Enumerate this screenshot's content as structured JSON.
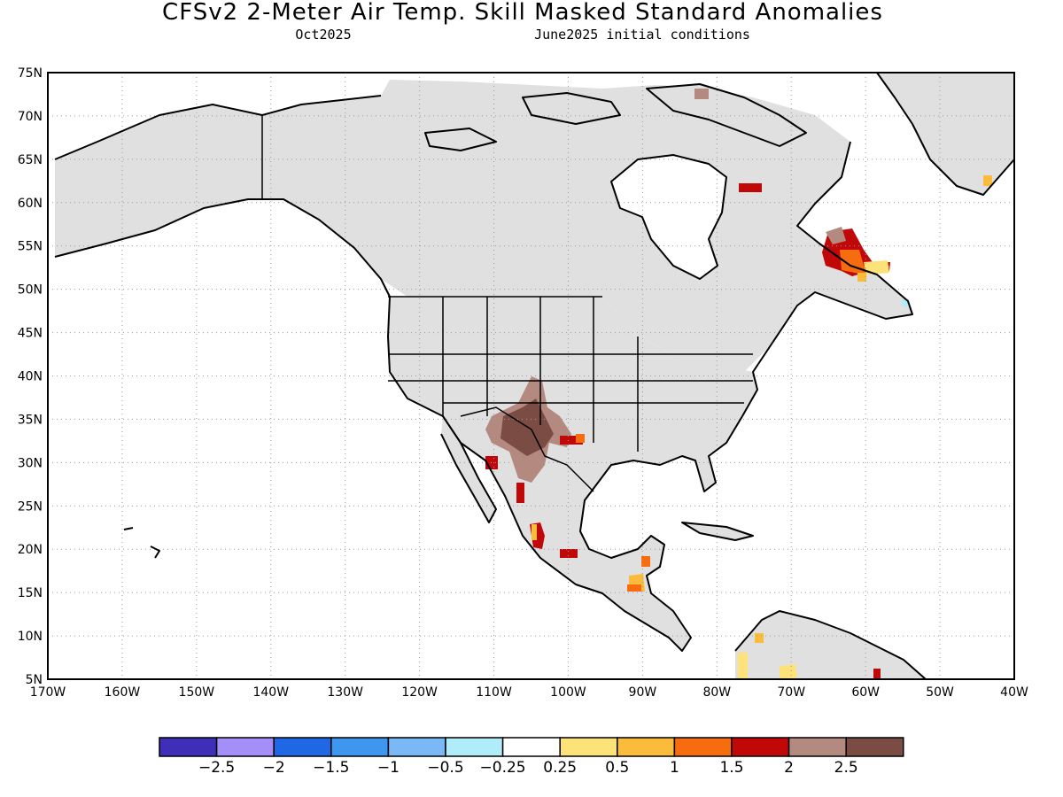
{
  "title": "CFSv2 2-Meter Air Temp. Skill Masked Standard Anomalies",
  "subtitle_left": "Oct2025",
  "subtitle_right": "June2025 initial conditions",
  "chart_data": {
    "type": "map",
    "projection": "equirectangular",
    "lon_range": [
      -170,
      -40
    ],
    "lat_range": [
      5,
      75
    ],
    "grid": true,
    "lat_ticks": [
      "5N",
      "10N",
      "15N",
      "20N",
      "25N",
      "30N",
      "35N",
      "40N",
      "45N",
      "50N",
      "55N",
      "60N",
      "65N",
      "70N",
      "75N"
    ],
    "lon_ticks": [
      "170W",
      "160W",
      "150W",
      "140W",
      "130W",
      "120W",
      "110W",
      "100W",
      "90W",
      "80W",
      "70W",
      "60W",
      "50W",
      "40W"
    ],
    "mask_color": "#e0e0e0",
    "colorbar": {
      "colors": [
        "#3f2fb8",
        "#a48ef8",
        "#2067e6",
        "#3f96ee",
        "#7ab8f6",
        "#b0ecfa",
        "#ffffff",
        "#fde27a",
        "#fbbc3c",
        "#f86c10",
        "#c00808",
        "#b48a80",
        "#7a4c44"
      ],
      "labels": [
        "-2.5",
        "-2",
        "-1.5",
        "-1",
        "-0.5",
        "-0.25",
        "0.25",
        "0.5",
        "1",
        "1.5",
        "2",
        "2.5"
      ]
    },
    "anomaly_regions": [
      {
        "name": "southwest-us",
        "lat": 33,
        "lon": -106,
        "value": 2.8
      },
      {
        "name": "labrador",
        "lat": 53,
        "lon": -63,
        "value": 1.8
      },
      {
        "name": "hudson-strait",
        "lat": 61,
        "lon": -75,
        "value": 2.0
      },
      {
        "name": "baffin-island",
        "lat": 72,
        "lon": -80,
        "value": 2.3
      },
      {
        "name": "mexico-west",
        "lat": 20.5,
        "lon": -105,
        "value": 1.8
      },
      {
        "name": "central-america",
        "lat": 16,
        "lon": -90.5,
        "value": 1.2
      },
      {
        "name": "colombia",
        "lat": 6,
        "lon": -75,
        "value": 0.5
      },
      {
        "name": "greenland-south",
        "lat": 62,
        "lon": -42,
        "value": 0.8
      }
    ]
  }
}
